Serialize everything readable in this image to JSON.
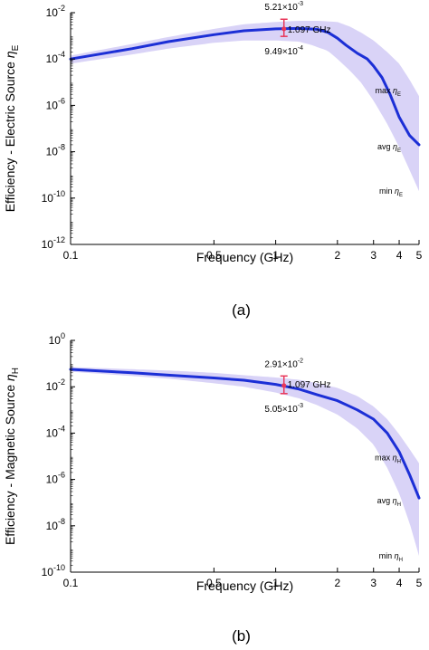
{
  "chart_data": [
    {
      "type": "area",
      "panel": "(a)",
      "xlabel": "Frequency (GHz)",
      "ylabel": {
        "text": "Efficiency - Electric Source ",
        "sym": "η",
        "sub": "E"
      },
      "xscale": "log",
      "yscale": "log",
      "xlim": [
        0.1,
        5
      ],
      "ylim_exp": [
        -12,
        -2
      ],
      "xticks": [
        0.1,
        0.5,
        1,
        2,
        3,
        4,
        5
      ],
      "xtick_labels": [
        "0.1",
        "0.5",
        "1",
        "2",
        "3",
        "4",
        "5"
      ],
      "yticks_exp": [
        -12,
        -10,
        -8,
        -6,
        -4,
        -2
      ],
      "grid": false,
      "series": [
        {
          "name": "avg ηE",
          "role": "avg",
          "x": [
            0.1,
            0.2,
            0.3,
            0.5,
            0.7,
            1.0,
            1.3,
            1.6,
            1.8,
            2.0,
            2.2,
            2.5,
            2.8,
            3.0,
            3.3,
            3.6,
            4.0,
            4.5,
            5.0
          ],
          "log10_y": [
            -4.0,
            -3.55,
            -3.25,
            -2.95,
            -2.78,
            -2.7,
            -2.68,
            -2.72,
            -2.85,
            -3.1,
            -3.4,
            -3.75,
            -4.0,
            -4.3,
            -4.8,
            -5.5,
            -6.5,
            -7.3,
            -7.7
          ]
        },
        {
          "name": "max ηE",
          "role": "max",
          "x": [
            0.1,
            0.2,
            0.3,
            0.5,
            0.7,
            1.0,
            1.3,
            1.6,
            2.0,
            2.3,
            2.6,
            3.0,
            3.5,
            4.0,
            4.5,
            5.0
          ],
          "log10_y": [
            -3.85,
            -3.35,
            -3.05,
            -2.7,
            -2.5,
            -2.4,
            -2.35,
            -2.35,
            -2.4,
            -2.6,
            -2.85,
            -3.2,
            -3.7,
            -4.2,
            -4.9,
            -5.6
          ]
        },
        {
          "name": "min ηE",
          "role": "min",
          "x": [
            0.1,
            0.2,
            0.3,
            0.5,
            0.7,
            1.0,
            1.3,
            1.5,
            1.8,
            2.0,
            2.3,
            2.6,
            3.0,
            3.5,
            4.0,
            4.5,
            5.0
          ],
          "log10_y": [
            -4.2,
            -3.8,
            -3.55,
            -3.3,
            -3.2,
            -3.2,
            -3.25,
            -3.4,
            -3.65,
            -4.0,
            -4.5,
            -5.0,
            -5.8,
            -6.8,
            -7.8,
            -8.8,
            -9.7
          ]
        }
      ],
      "marker": {
        "x": 1.097,
        "log10_y": -2.7,
        "err_low_log10": -3.023,
        "err_high_log10": -2.283,
        "label_freq": "1.097 GHz",
        "label_high": {
          "mant": "5.21",
          "times": "×10",
          "exp": "-3"
        },
        "label_low": {
          "mant": "9.49",
          "times": "×10",
          "exp": "-4"
        }
      },
      "series_labels": [
        {
          "role": "max",
          "text": "max ",
          "sym": "η",
          "sub": "E"
        },
        {
          "role": "avg",
          "text": "avg ",
          "sym": "η",
          "sub": "E"
        },
        {
          "role": "min",
          "text": "min ",
          "sym": "η",
          "sub": "E"
        }
      ],
      "colors": {
        "line": "#1c2fd6",
        "band": "#d9d3f7",
        "errbar": "#e8365a"
      }
    },
    {
      "type": "area",
      "panel": "(b)",
      "xlabel": "Frequency (GHz)",
      "ylabel": {
        "text": "Efficiency - Magnetic Source ",
        "sym": "η",
        "sub": "H"
      },
      "xscale": "log",
      "yscale": "log",
      "xlim": [
        0.1,
        5
      ],
      "ylim_exp": [
        -10,
        0
      ],
      "xticks": [
        0.1,
        0.5,
        1,
        2,
        3,
        4,
        5
      ],
      "xtick_labels": [
        "0.1",
        "0.5",
        "1",
        "2",
        "3",
        "4",
        "5"
      ],
      "yticks_exp": [
        -10,
        -8,
        -6,
        -4,
        -2,
        0
      ],
      "grid": false,
      "series": [
        {
          "name": "avg ηH",
          "role": "avg",
          "x": [
            0.1,
            0.2,
            0.3,
            0.5,
            0.7,
            1.0,
            1.3,
            1.6,
            2.0,
            2.5,
            3.0,
            3.5,
            4.0,
            4.5,
            5.0
          ],
          "log10_y": [
            -1.25,
            -1.4,
            -1.5,
            -1.62,
            -1.72,
            -1.9,
            -2.1,
            -2.35,
            -2.6,
            -3.0,
            -3.4,
            -4.0,
            -4.8,
            -5.8,
            -6.8
          ]
        },
        {
          "name": "max ηH",
          "role": "max",
          "x": [
            0.1,
            0.3,
            0.5,
            0.7,
            1.0,
            1.3,
            1.6,
            2.0,
            2.5,
            3.0,
            3.5,
            4.0,
            4.5,
            5.0
          ],
          "log10_y": [
            -1.15,
            -1.3,
            -1.4,
            -1.5,
            -1.6,
            -1.7,
            -1.85,
            -2.05,
            -2.4,
            -2.85,
            -3.4,
            -4.05,
            -4.7,
            -5.3
          ]
        },
        {
          "name": "min ηH",
          "role": "min",
          "x": [
            0.1,
            0.3,
            0.5,
            0.7,
            1.0,
            1.3,
            1.6,
            2.0,
            2.5,
            3.0,
            3.5,
            4.0,
            4.5,
            5.0
          ],
          "log10_y": [
            -1.35,
            -1.65,
            -1.85,
            -2.0,
            -2.25,
            -2.5,
            -2.8,
            -3.2,
            -3.8,
            -4.5,
            -5.5,
            -6.6,
            -7.9,
            -9.3
          ]
        }
      ],
      "marker": {
        "x": 1.097,
        "log10_y": -1.95,
        "err_low_log10": -2.297,
        "err_high_log10": -1.536,
        "label_freq": "1.097 GHz",
        "label_high": {
          "mant": "2.91",
          "times": "×10",
          "exp": "-2"
        },
        "label_low": {
          "mant": "5.05",
          "times": "×10",
          "exp": "-3"
        }
      },
      "series_labels": [
        {
          "role": "max",
          "text": "max ",
          "sym": "η",
          "sub": "H"
        },
        {
          "role": "avg",
          "text": "avg ",
          "sym": "η",
          "sub": "H"
        },
        {
          "role": "min",
          "text": "min ",
          "sym": "η",
          "sub": "H"
        }
      ],
      "colors": {
        "line": "#1c2fd6",
        "band": "#d9d3f7",
        "errbar": "#e8365a"
      }
    }
  ]
}
